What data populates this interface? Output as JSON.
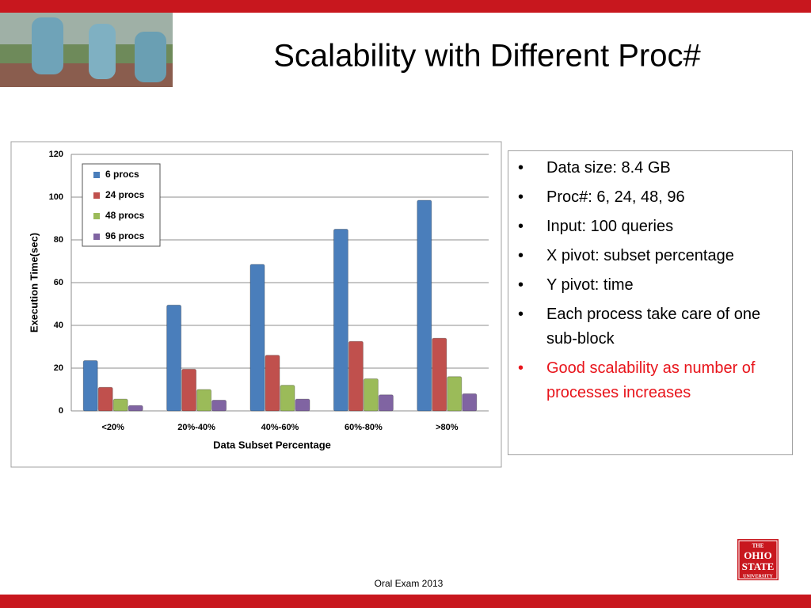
{
  "title": "Scalability with Different Proc#",
  "bullets": [
    {
      "text": "Data size: 8.4 GB",
      "color": "#000000"
    },
    {
      "text": "Proc#: 6, 24, 48, 96",
      "color": "#000000"
    },
    {
      "text": "Input: 100 queries",
      "color": "#000000"
    },
    {
      "text": "X pivot: subset percentage",
      "color": "#000000"
    },
    {
      "text": "Y pivot: time",
      "color": "#000000"
    },
    {
      "text": "Each process take care of one sub-block",
      "color": "#000000"
    },
    {
      "text": "Good scalability as number of processes increases",
      "color": "#e8141b"
    }
  ],
  "footer": "Oral Exam 2013",
  "logo": [
    "THE",
    "OHIO",
    "STATE",
    "UNIVERSITY"
  ],
  "chart_data": {
    "type": "bar",
    "categories": [
      "<20%",
      "20%-40%",
      "40%-60%",
      "60%-80%",
      ">80%"
    ],
    "series": [
      {
        "name": "6 procs",
        "color": "#4a7ebb",
        "values": [
          23.5,
          49.5,
          68.5,
          85,
          98.5
        ]
      },
      {
        "name": "24 procs",
        "color": "#c0504d",
        "values": [
          11,
          19.5,
          26,
          32.5,
          34
        ]
      },
      {
        "name": "48 procs",
        "color": "#9bbb59",
        "values": [
          5.5,
          10,
          12,
          15,
          16
        ]
      },
      {
        "name": "96 procs",
        "color": "#8064a2",
        "values": [
          2.5,
          5,
          5.5,
          7.5,
          8
        ]
      }
    ],
    "xlabel": "Data Subset Percentage",
    "ylabel": "Execution Time(sec)",
    "ylim": [
      0,
      120
    ],
    "yticks": [
      0,
      20,
      40,
      60,
      80,
      100,
      120
    ],
    "grid": true,
    "legend": "upper left"
  }
}
